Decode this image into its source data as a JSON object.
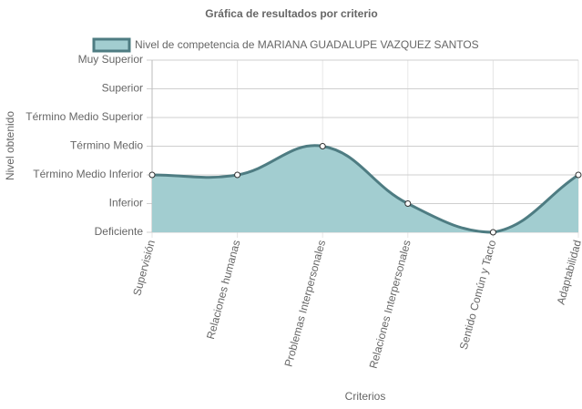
{
  "chart_data": {
    "type": "line",
    "title": "Gráfica de resultados por criterio",
    "x_label": "Criterios",
    "y_label": "Nivel obtenido",
    "categories": [
      "Supervisión",
      "Relaciones humanas",
      "Problemas Interpersonales",
      "Relaciones Interpersonales",
      "Sentido Común y Tacto",
      "Adaptabilidad"
    ],
    "series": [
      {
        "name": "Nivel de competencia de MARIANA GUADALUPE VAZQUEZ SANTOS",
        "color": "#4e7c82",
        "fill_color": "#a2cdd0",
        "values": [
          2,
          2,
          3,
          1,
          0,
          2
        ]
      }
    ],
    "ylim": [
      0,
      6
    ],
    "yticks": [
      {
        "value": 0,
        "label": "Deficiente"
      },
      {
        "value": 1,
        "label": "Inferior"
      },
      {
        "value": 2,
        "label": "Término Medio Inferior"
      },
      {
        "value": 3,
        "label": "Término Medio"
      },
      {
        "value": 4,
        "label": "Término Medio Superior"
      },
      {
        "value": 5,
        "label": "Superior"
      },
      {
        "value": 6,
        "label": "Muy Superior"
      }
    ],
    "grid": true,
    "legend": "top"
  }
}
